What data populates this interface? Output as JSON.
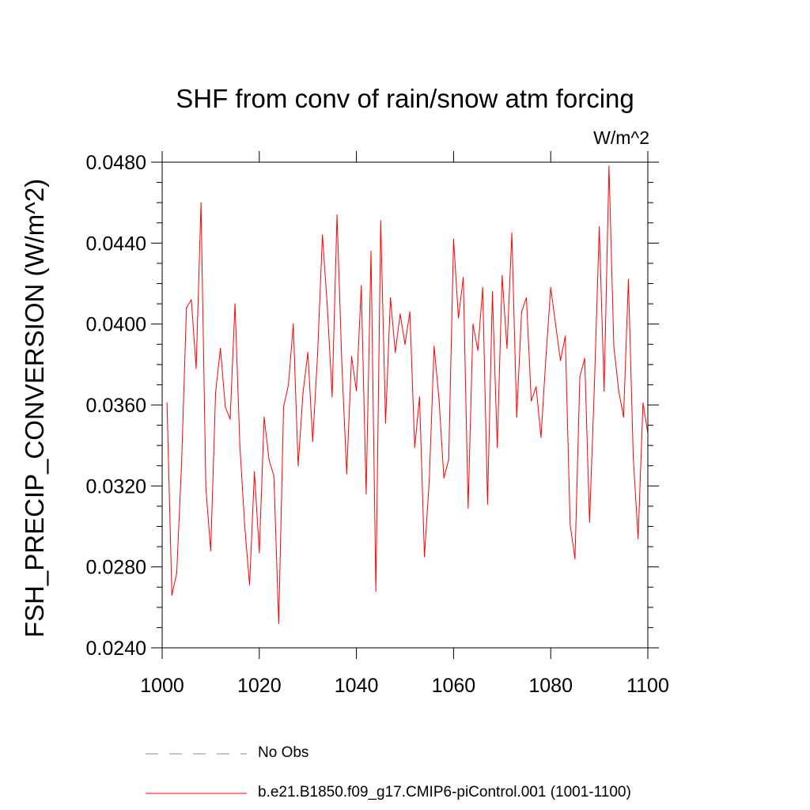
{
  "chart_data": {
    "type": "line",
    "title": "SHF from conv of rain/snow atm forcing",
    "units_label": "W/m^2",
    "ylabel": "FSH_PRECIP_CONVERSION  (W/m^2)",
    "xlabel": "",
    "xlim": [
      1000,
      1100
    ],
    "ylim": [
      0.024,
      0.048
    ],
    "x_ticks": [
      1000,
      1020,
      1040,
      1060,
      1080,
      1100
    ],
    "x_tick_labels": [
      "1000",
      "1020",
      "1040",
      "1060",
      "1080",
      "1100"
    ],
    "y_ticks": [
      0.024,
      0.028,
      0.032,
      0.036,
      0.04,
      0.044,
      0.048
    ],
    "y_tick_labels": [
      "0.0240",
      "0.0280",
      "0.0320",
      "0.0360",
      "0.0400",
      "0.0440",
      "0.0480"
    ],
    "legend": [
      {
        "name": "No Obs",
        "color": "#8080c0",
        "style": "dashed"
      },
      {
        "name": "b.e21.B1850.f09_g17.CMIP6-piControl.001 (1001-1100)",
        "color": "#ff0000",
        "style": "solid"
      }
    ],
    "series": [
      {
        "name": "b.e21.B1850.f09_g17.CMIP6-piControl.001 (1001-1100)",
        "color": "#ff0000",
        "x": [
          1001,
          1002,
          1003,
          1004,
          1005,
          1006,
          1007,
          1008,
          1009,
          1010,
          1011,
          1012,
          1013,
          1014,
          1015,
          1016,
          1017,
          1018,
          1019,
          1020,
          1021,
          1022,
          1023,
          1024,
          1025,
          1026,
          1027,
          1028,
          1029,
          1030,
          1031,
          1032,
          1033,
          1034,
          1035,
          1036,
          1037,
          1038,
          1039,
          1040,
          1041,
          1042,
          1043,
          1044,
          1045,
          1046,
          1047,
          1048,
          1049,
          1050,
          1051,
          1052,
          1053,
          1054,
          1055,
          1056,
          1057,
          1058,
          1059,
          1060,
          1061,
          1062,
          1063,
          1064,
          1065,
          1066,
          1067,
          1068,
          1069,
          1070,
          1071,
          1072,
          1073,
          1074,
          1075,
          1076,
          1077,
          1078,
          1079,
          1080,
          1081,
          1082,
          1083,
          1084,
          1085,
          1086,
          1087,
          1088,
          1089,
          1090,
          1091,
          1092,
          1093,
          1094,
          1095,
          1096,
          1097,
          1098,
          1099,
          1100
        ],
        "values": [
          0.0361,
          0.0266,
          0.0277,
          0.0331,
          0.0408,
          0.0412,
          0.0378,
          0.046,
          0.0319,
          0.0288,
          0.0366,
          0.0388,
          0.0359,
          0.0353,
          0.041,
          0.034,
          0.03,
          0.0271,
          0.0327,
          0.0287,
          0.0354,
          0.0333,
          0.0325,
          0.0252,
          0.0359,
          0.037,
          0.04,
          0.033,
          0.0366,
          0.0386,
          0.0342,
          0.0385,
          0.0444,
          0.0409,
          0.0364,
          0.0454,
          0.038,
          0.0326,
          0.0384,
          0.0367,
          0.0419,
          0.0316,
          0.0436,
          0.0268,
          0.0451,
          0.0351,
          0.0413,
          0.0386,
          0.0405,
          0.039,
          0.0406,
          0.0339,
          0.0364,
          0.0285,
          0.0323,
          0.0389,
          0.0363,
          0.0324,
          0.0333,
          0.0442,
          0.0403,
          0.0423,
          0.0309,
          0.04,
          0.0387,
          0.0418,
          0.0311,
          0.0416,
          0.0339,
          0.0424,
          0.0388,
          0.0445,
          0.0354,
          0.0406,
          0.0413,
          0.0362,
          0.0369,
          0.0344,
          0.0383,
          0.0418,
          0.04,
          0.0382,
          0.0394,
          0.0301,
          0.0284,
          0.0374,
          0.0383,
          0.0302,
          0.037,
          0.0448,
          0.0367,
          0.0478,
          0.0389,
          0.0367,
          0.0354,
          0.0422,
          0.0334,
          0.0294,
          0.0361,
          0.0346
        ]
      }
    ]
  }
}
